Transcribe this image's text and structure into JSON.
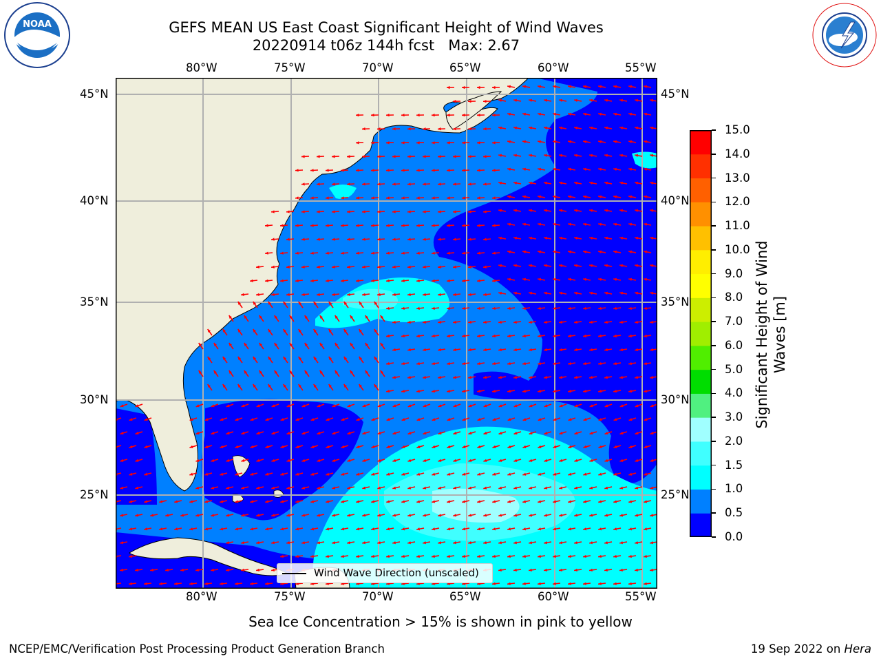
{
  "title": {
    "line1": "GEFS MEAN US East Coast Significant Height of Wind Waves",
    "line2": "20220914 t06z 144h fcst   Max: 2.67"
  },
  "logos": {
    "noaa_text": "NOAA",
    "noaa_ring": "NATIONAL OCEANIC AND ATMOSPHERIC ADMINISTRATION · U.S. DEPARTMENT OF COMMERCE",
    "nws_ring": "NATIONAL WEATHER SERVICE"
  },
  "map": {
    "lon_labels": [
      "80°W",
      "75°W",
      "70°W",
      "65°W",
      "60°W",
      "55°W"
    ],
    "lat_labels": [
      "45°N",
      "40°N",
      "35°N",
      "30°N",
      "25°N"
    ],
    "land_color": "#efeedc",
    "arrow_color": "#ff0000",
    "grid": "on"
  },
  "legend": {
    "label": "Wind Wave Direction (unscaled)"
  },
  "colorbar": {
    "label": "Significant Height of Wind Waves [m]",
    "ticks": [
      "0.0",
      "0.5",
      "1.0",
      "1.5",
      "2.0",
      "3.0",
      "4.0",
      "5.0",
      "6.0",
      "7.0",
      "8.0",
      "9.0",
      "10.0",
      "11.0",
      "12.0",
      "13.0",
      "14.0",
      "15.0"
    ],
    "colors": [
      "#0000ff",
      "#0080ff",
      "#00ffff",
      "#40ffff",
      "#a0ffff",
      "#50f080",
      "#00dd00",
      "#50ee00",
      "#a0ee00",
      "#ccee00",
      "#ffff00",
      "#ffee00",
      "#ffc000",
      "#ff9000",
      "#ff6000",
      "#ff3000",
      "#ff0000"
    ]
  },
  "caption": "Sea Ice Concentration > 15% is shown in pink to yellow",
  "footer": {
    "left": "NCEP/EMC/Verification Post Processing Product Generation Branch",
    "right_date": "19 Sep 2022 on ",
    "right_host": "Hera"
  }
}
